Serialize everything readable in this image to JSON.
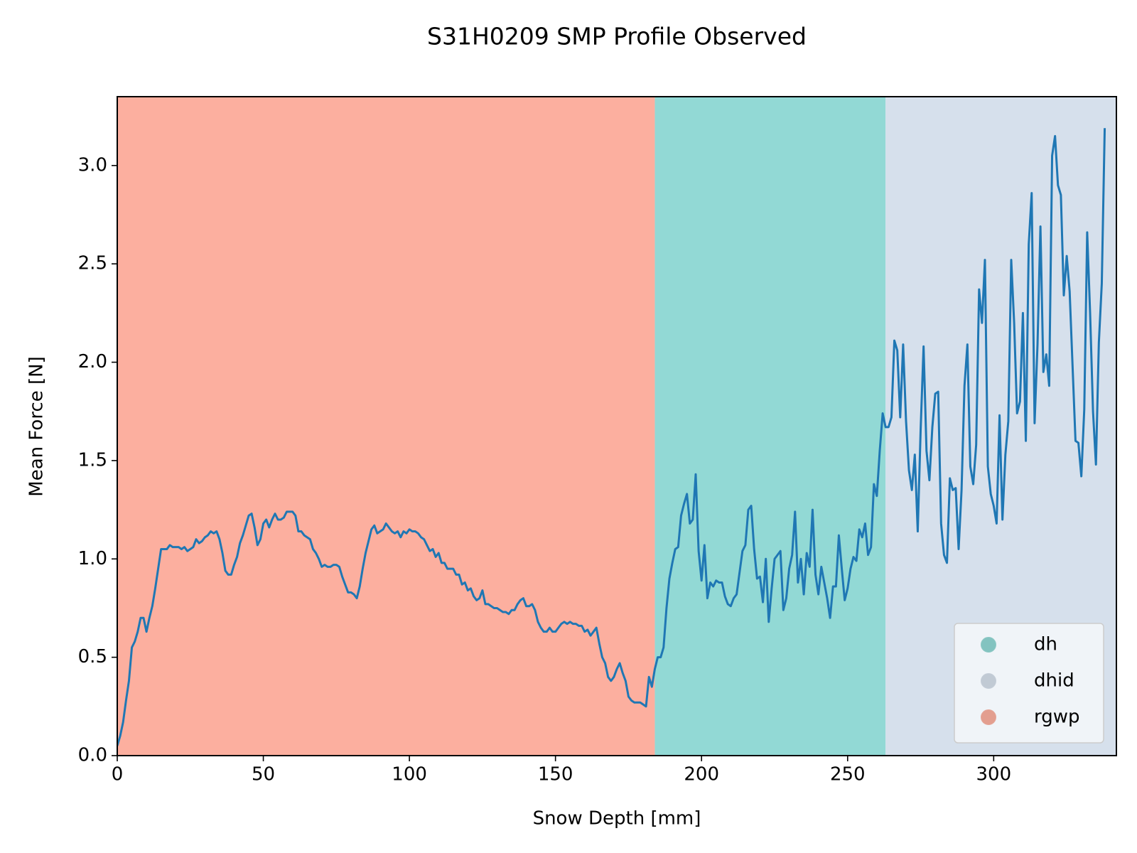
{
  "chart_data": {
    "type": "line",
    "title": "S31H0209 SMP Profile Observed",
    "xlabel": "Snow Depth [mm]",
    "ylabel": "Mean Force [N]",
    "color": "#1f77b4",
    "xlim": [
      0,
      342
    ],
    "ylim": [
      0,
      3.35
    ],
    "xticks": [
      0,
      50,
      100,
      150,
      200,
      250,
      300
    ],
    "yticks": [
      {
        "value": 0,
        "label": "0.0"
      },
      0.5,
      {
        "value": 1,
        "label": "1.0"
      },
      1.5,
      {
        "value": 2,
        "label": "2.0"
      },
      2.5,
      {
        "value": 3,
        "label": "3.0"
      }
    ],
    "legend_position": "lower right",
    "regions": [
      {
        "name": "dh",
        "color": "#92d9d5",
        "start": 184,
        "end": 263
      },
      {
        "name": "dhid",
        "color": "#d6e0ec",
        "start": 263,
        "end": 342
      },
      {
        "name": "rgwp",
        "color": "#fcaf9f",
        "start": 0,
        "end": 184
      }
    ],
    "x": [
      0,
      1,
      2,
      3,
      4,
      5,
      6,
      7,
      8,
      9,
      10,
      11,
      12,
      13,
      14,
      15,
      16,
      17,
      18,
      19,
      20,
      21,
      22,
      23,
      24,
      25,
      26,
      27,
      28,
      29,
      30,
      31,
      32,
      33,
      34,
      35,
      36,
      37,
      38,
      39,
      40,
      41,
      42,
      43,
      44,
      45,
      46,
      47,
      48,
      49,
      50,
      51,
      52,
      53,
      54,
      55,
      56,
      57,
      58,
      59,
      60,
      61,
      62,
      63,
      64,
      65,
      66,
      67,
      68,
      69,
      70,
      71,
      72,
      73,
      74,
      75,
      76,
      77,
      78,
      79,
      80,
      81,
      82,
      83,
      84,
      85,
      86,
      87,
      88,
      89,
      90,
      91,
      92,
      93,
      94,
      95,
      96,
      97,
      98,
      99,
      100,
      101,
      102,
      103,
      104,
      105,
      106,
      107,
      108,
      109,
      110,
      111,
      112,
      113,
      114,
      115,
      116,
      117,
      118,
      119,
      120,
      121,
      122,
      123,
      124,
      125,
      126,
      127,
      128,
      129,
      130,
      131,
      132,
      133,
      134,
      135,
      136,
      137,
      138,
      139,
      140,
      141,
      142,
      143,
      144,
      145,
      146,
      147,
      148,
      149,
      150,
      151,
      152,
      153,
      154,
      155,
      156,
      157,
      158,
      159,
      160,
      161,
      162,
      163,
      164,
      165,
      166,
      167,
      168,
      169,
      170,
      171,
      172,
      173,
      174,
      175,
      176,
      177,
      178,
      179,
      180,
      181,
      182,
      183,
      184,
      185,
      186,
      187,
      188,
      189,
      190,
      191,
      192,
      193,
      194,
      195,
      196,
      197,
      198,
      199,
      200,
      201,
      202,
      203,
      204,
      205,
      206,
      207,
      208,
      209,
      210,
      211,
      212,
      213,
      214,
      215,
      216,
      217,
      218,
      219,
      220,
      221,
      222,
      223,
      224,
      225,
      226,
      227,
      228,
      229,
      230,
      231,
      232,
      233,
      234,
      235,
      236,
      237,
      238,
      239,
      240,
      241,
      242,
      243,
      244,
      245,
      246,
      247,
      248,
      249,
      250,
      251,
      252,
      253,
      254,
      255,
      256,
      257,
      258,
      259,
      260,
      261,
      262,
      263,
      264,
      265,
      266,
      267,
      268,
      269,
      270,
      271,
      272,
      273,
      274,
      275,
      276,
      277,
      278,
      279,
      280,
      281,
      282,
      283,
      284,
      285,
      286,
      287,
      288,
      289,
      290,
      291,
      292,
      293,
      294,
      295,
      296,
      297,
      298,
      299,
      300,
      301,
      302,
      303,
      304,
      305,
      306,
      307,
      308,
      309,
      310,
      311,
      312,
      313,
      314,
      315,
      316,
      317,
      318,
      319,
      320,
      321,
      322,
      323,
      324,
      325,
      326,
      327,
      328,
      329,
      330,
      331,
      332,
      333,
      334,
      335,
      336,
      337,
      338
    ],
    "values": [
      0.05,
      0.1,
      0.17,
      0.28,
      0.38,
      0.55,
      0.58,
      0.63,
      0.7,
      0.7,
      0.63,
      0.7,
      0.76,
      0.85,
      0.95,
      1.05,
      1.05,
      1.05,
      1.07,
      1.06,
      1.06,
      1.06,
      1.05,
      1.06,
      1.04,
      1.05,
      1.06,
      1.1,
      1.08,
      1.09,
      1.11,
      1.12,
      1.14,
      1.13,
      1.14,
      1.1,
      1.03,
      0.94,
      0.92,
      0.92,
      0.97,
      1.01,
      1.08,
      1.12,
      1.17,
      1.22,
      1.23,
      1.16,
      1.07,
      1.1,
      1.18,
      1.2,
      1.16,
      1.2,
      1.23,
      1.2,
      1.2,
      1.21,
      1.24,
      1.24,
      1.24,
      1.22,
      1.14,
      1.14,
      1.12,
      1.11,
      1.1,
      1.05,
      1.03,
      1.0,
      0.96,
      0.97,
      0.96,
      0.96,
      0.97,
      0.97,
      0.96,
      0.91,
      0.87,
      0.83,
      0.83,
      0.82,
      0.8,
      0.86,
      0.95,
      1.03,
      1.09,
      1.15,
      1.17,
      1.13,
      1.14,
      1.15,
      1.18,
      1.16,
      1.14,
      1.13,
      1.14,
      1.11,
      1.14,
      1.13,
      1.15,
      1.14,
      1.14,
      1.13,
      1.11,
      1.1,
      1.07,
      1.04,
      1.05,
      1.01,
      1.03,
      0.98,
      0.98,
      0.95,
      0.95,
      0.95,
      0.92,
      0.92,
      0.87,
      0.88,
      0.84,
      0.85,
      0.81,
      0.79,
      0.8,
      0.84,
      0.77,
      0.77,
      0.76,
      0.75,
      0.75,
      0.74,
      0.73,
      0.73,
      0.72,
      0.74,
      0.74,
      0.77,
      0.79,
      0.8,
      0.76,
      0.76,
      0.77,
      0.74,
      0.68,
      0.65,
      0.63,
      0.63,
      0.65,
      0.63,
      0.63,
      0.65,
      0.67,
      0.68,
      0.67,
      0.68,
      0.67,
      0.67,
      0.66,
      0.66,
      0.63,
      0.64,
      0.61,
      0.63,
      0.65,
      0.57,
      0.5,
      0.47,
      0.4,
      0.38,
      0.4,
      0.44,
      0.47,
      0.42,
      0.38,
      0.3,
      0.28,
      0.27,
      0.27,
      0.27,
      0.26,
      0.25,
      0.4,
      0.35,
      0.44,
      0.5,
      0.5,
      0.55,
      0.75,
      0.9,
      0.98,
      1.05,
      1.06,
      1.22,
      1.28,
      1.33,
      1.18,
      1.2,
      1.43,
      1.04,
      0.89,
      1.07,
      0.8,
      0.88,
      0.86,
      0.89,
      0.88,
      0.88,
      0.81,
      0.77,
      0.76,
      0.8,
      0.82,
      0.93,
      1.04,
      1.07,
      1.25,
      1.27,
      1.05,
      0.9,
      0.91,
      0.78,
      1.0,
      0.68,
      0.85,
      1.0,
      1.02,
      1.04,
      0.74,
      0.8,
      0.95,
      1.02,
      1.24,
      0.88,
      1.0,
      0.82,
      1.03,
      0.96,
      1.25,
      0.92,
      0.82,
      0.96,
      0.88,
      0.8,
      0.7,
      0.86,
      0.86,
      1.12,
      0.95,
      0.79,
      0.85,
      0.95,
      1.01,
      0.99,
      1.15,
      1.11,
      1.18,
      1.02,
      1.06,
      1.38,
      1.32,
      1.55,
      1.74,
      1.67,
      1.67,
      1.72,
      2.11,
      2.06,
      1.72,
      2.09,
      1.7,
      1.45,
      1.35,
      1.53,
      1.14,
      1.66,
      2.08,
      1.55,
      1.4,
      1.67,
      1.84,
      1.85,
      1.18,
      1.02,
      0.98,
      1.41,
      1.35,
      1.36,
      1.05,
      1.35,
      1.88,
      2.09,
      1.47,
      1.38,
      1.58,
      2.37,
      2.2,
      2.52,
      1.47,
      1.33,
      1.27,
      1.18,
      1.73,
      1.2,
      1.53,
      1.7,
      2.52,
      2.2,
      1.74,
      1.8,
      2.25,
      1.6,
      2.6,
      2.86,
      1.69,
      2.09,
      2.69,
      1.95,
      2.04,
      1.88,
      3.05,
      3.15,
      2.9,
      2.85,
      2.34,
      2.54,
      2.36,
      1.98,
      1.6,
      1.59,
      1.42,
      1.76,
      2.66,
      2.25,
      1.75,
      1.48,
      2.1,
      2.4,
      3.19
    ]
  }
}
